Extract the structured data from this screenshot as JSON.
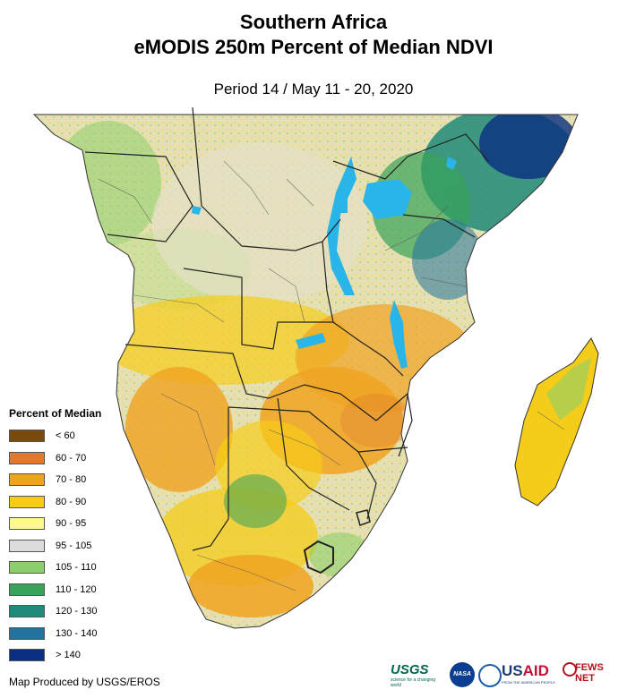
{
  "title_line1": "Southern Africa",
  "title_line2": "eMODIS 250m Percent of Median NDVI",
  "period": "Period 14 / May 11 - 20, 2020",
  "legend": {
    "title": "Percent of Median",
    "items": [
      {
        "label": "< 60",
        "color": "#7a4a0a"
      },
      {
        "label": "60 - 70",
        "color": "#e07a30"
      },
      {
        "label": "70 - 80",
        "color": "#f0a321"
      },
      {
        "label": "80 - 90",
        "color": "#f6cc1a"
      },
      {
        "label": "90 - 95",
        "color": "#fdf98e"
      },
      {
        "label": "95 - 105",
        "color": "#dcdcdc"
      },
      {
        "label": "105 - 110",
        "color": "#8ccf6a"
      },
      {
        "label": "110 - 120",
        "color": "#38a35a"
      },
      {
        "label": "120 - 130",
        "color": "#1f8a79"
      },
      {
        "label": "130 - 140",
        "color": "#2372a0"
      },
      {
        "label": "> 140",
        "color": "#0a2e82"
      }
    ]
  },
  "credit": "Map Produced by USGS/EROS",
  "logos": {
    "usgs": "USGS",
    "usgs_tagline": "science for a changing world",
    "nasa": "NASA",
    "usaid": "USAID",
    "usaid_tagline": "FROM THE AMERICAN PEOPLE",
    "fewsnet": "FEWS NET"
  },
  "colors": {
    "water": "#29b5e8",
    "border": "#222222"
  }
}
